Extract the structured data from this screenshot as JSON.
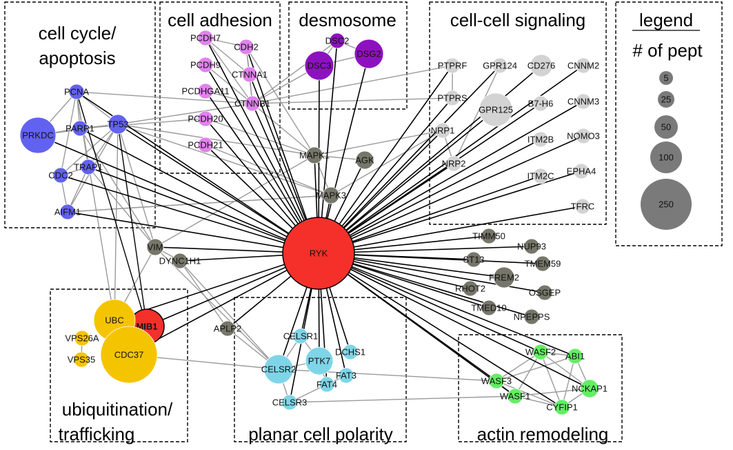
{
  "title": "",
  "colors": {
    "hub": "#f5302a",
    "cell_cycle": "#6262f0",
    "adhesion": "#e083ec",
    "desmosome": "#8d12bf",
    "signaling": "#d3d3d3",
    "other": "#76766a",
    "ubiquitination": "#f5c400",
    "planar": "#7fd5e8",
    "actin": "#63ee63",
    "legend": "#7a7a7a",
    "edge_hub": "#000000",
    "edge_other": "#9a9a9a"
  },
  "groups": [
    {
      "id": "cellcycle",
      "lines": [
        "cell cycle/",
        "apoptosis"
      ],
      "label_pos": "top"
    },
    {
      "id": "adhesion",
      "lines": [
        "cell adhesion"
      ],
      "label_pos": "top"
    },
    {
      "id": "desmosome",
      "lines": [
        "desmosome"
      ],
      "label_pos": "top"
    },
    {
      "id": "signaling",
      "lines": [
        "cell-cell signaling"
      ],
      "label_pos": "top"
    },
    {
      "id": "legend",
      "lines": [
        "legend",
        "# of pept"
      ],
      "label_pos": "top"
    },
    {
      "id": "ubiq",
      "lines": [
        "ubiquitination/",
        "trafficking"
      ],
      "label_pos": "bottom"
    },
    {
      "id": "planar",
      "lines": [
        "planar cell polarity"
      ],
      "label_pos": "bottom"
    },
    {
      "id": "actin",
      "lines": [
        "actin remodeling"
      ],
      "label_pos": "bottom"
    }
  ],
  "legend": {
    "title": "legend",
    "subtitle": "# of pept",
    "sizes": [
      "5",
      "25",
      "50",
      "100",
      "250"
    ]
  },
  "nodes": [
    {
      "id": "RYK",
      "label": "RYK",
      "group": "hub",
      "peptides": 250
    },
    {
      "id": "MIB1",
      "label": "MIB1",
      "group": "hub",
      "peptides": 45
    },
    {
      "id": "PCNA",
      "label": "PCNA",
      "group": "cell_cycle",
      "peptides": 5
    },
    {
      "id": "PRKDC",
      "label": "PRKDC",
      "group": "cell_cycle",
      "peptides": 50
    },
    {
      "id": "PARP1",
      "label": "PARP1",
      "group": "cell_cycle",
      "peptides": 5
    },
    {
      "id": "TP53",
      "label": "TP53",
      "group": "cell_cycle",
      "peptides": 5
    },
    {
      "id": "CDC2",
      "label": "CDC2",
      "group": "cell_cycle",
      "peptides": 5
    },
    {
      "id": "TRAP1",
      "label": "TRAP1",
      "group": "cell_cycle",
      "peptides": 5
    },
    {
      "id": "AIFM1",
      "label": "AIFM1",
      "group": "cell_cycle",
      "peptides": 5
    },
    {
      "id": "PCDH7",
      "label": "PCDH7",
      "group": "adhesion",
      "peptides": 5
    },
    {
      "id": "CDH2",
      "label": "CDH2",
      "group": "adhesion",
      "peptides": 5
    },
    {
      "id": "PCDH9",
      "label": "PCDH9",
      "group": "adhesion",
      "peptides": 5
    },
    {
      "id": "CTNNA1",
      "label": "CTNNA1",
      "group": "adhesion",
      "peptides": 5
    },
    {
      "id": "PCDHGA11",
      "label": "PCDHGA11",
      "group": "adhesion",
      "peptides": 5
    },
    {
      "id": "CTNNB1",
      "label": "CTNNB1",
      "group": "adhesion",
      "peptides": 5
    },
    {
      "id": "PCDH20",
      "label": "PCDH20",
      "group": "adhesion",
      "peptides": 5
    },
    {
      "id": "PCDH21",
      "label": "PCDH21",
      "group": "adhesion",
      "peptides": 5
    },
    {
      "id": "DSC2",
      "label": "DSC2",
      "group": "desmosome",
      "peptides": 5
    },
    {
      "id": "DSG2",
      "label": "DSG2",
      "group": "desmosome",
      "peptides": 25
    },
    {
      "id": "DSC3",
      "label": "DSC3",
      "group": "desmosome",
      "peptides": 25
    },
    {
      "id": "PTPRF",
      "label": "PTPRF",
      "group": "signaling",
      "peptides": 5
    },
    {
      "id": "GPR124",
      "label": "GPR124",
      "group": "signaling",
      "peptides": 5
    },
    {
      "id": "CD276",
      "label": "CD276",
      "group": "signaling",
      "peptides": 25
    },
    {
      "id": "CNNM2",
      "label": "CNNM2",
      "group": "signaling",
      "peptides": 5
    },
    {
      "id": "PTPRS",
      "label": "PTPRS",
      "group": "signaling",
      "peptides": 5
    },
    {
      "id": "GPR125",
      "label": "GPR125",
      "group": "signaling",
      "peptides": 50
    },
    {
      "id": "B7-H6",
      "label": "B7-H6",
      "group": "signaling",
      "peptides": 5
    },
    {
      "id": "CNNM3",
      "label": "CNNM3",
      "group": "signaling",
      "peptides": 5
    },
    {
      "id": "NRP1",
      "label": "NRP1",
      "group": "signaling",
      "peptides": 5
    },
    {
      "id": "ITM2B",
      "label": "ITM2B",
      "group": "signaling",
      "peptides": 5
    },
    {
      "id": "NOMO3",
      "label": "NOMO3",
      "group": "signaling",
      "peptides": 5
    },
    {
      "id": "NRP2",
      "label": "NRP2",
      "group": "signaling",
      "peptides": 5
    },
    {
      "id": "ITM2C",
      "label": "ITM2C",
      "group": "signaling",
      "peptides": 5
    },
    {
      "id": "EPHA4",
      "label": "EPHA4",
      "group": "signaling",
      "peptides": 5
    },
    {
      "id": "TFRC",
      "label": "TFRC",
      "group": "signaling",
      "peptides": 5
    },
    {
      "id": "MAPK1",
      "label": "MAPK1",
      "group": "other",
      "peptides": 5
    },
    {
      "id": "AGK",
      "label": "AGK",
      "group": "other",
      "peptides": 5
    },
    {
      "id": "MAPK3",
      "label": "MAPK3",
      "group": "other",
      "peptides": 5
    },
    {
      "id": "VIM",
      "label": "VIM",
      "group": "other",
      "peptides": 5
    },
    {
      "id": "DYNC1H1",
      "label": "DYNC1H1",
      "group": "other",
      "peptides": 5
    },
    {
      "id": "APLP2",
      "label": "APLP2",
      "group": "other",
      "peptides": 5
    },
    {
      "id": "TIMM50",
      "label": "TIMM50",
      "group": "other",
      "peptides": 5
    },
    {
      "id": "NUP93",
      "label": "NUP93",
      "group": "other",
      "peptides": 5
    },
    {
      "id": "ST13",
      "label": "ST13",
      "group": "other",
      "peptides": 5
    },
    {
      "id": "TMEM59",
      "label": "TMEM59",
      "group": "other",
      "peptides": 5
    },
    {
      "id": "FREM2",
      "label": "FREM2",
      "group": "other",
      "peptides": 25
    },
    {
      "id": "RHOT2",
      "label": "RHOT2",
      "group": "other",
      "peptides": 5
    },
    {
      "id": "OSGEP",
      "label": "OSGEP",
      "group": "other",
      "peptides": 5
    },
    {
      "id": "TMED10",
      "label": "TMED10",
      "group": "other",
      "peptides": 5
    },
    {
      "id": "NPEPPS",
      "label": "NPEPPS",
      "group": "other",
      "peptides": 5
    },
    {
      "id": "UBC",
      "label": "UBC",
      "group": "ubiquitination",
      "peptides": 50
    },
    {
      "id": "CDC37",
      "label": "CDC37",
      "group": "ubiquitination",
      "peptides": 100
    },
    {
      "id": "VPS26A",
      "label": "VPS26A",
      "group": "ubiquitination",
      "peptides": 5
    },
    {
      "id": "VPS35",
      "label": "VPS35",
      "group": "ubiquitination",
      "peptides": 5
    },
    {
      "id": "CELSR1",
      "label": "CELSR1",
      "group": "planar",
      "peptides": 5
    },
    {
      "id": "DCHS1",
      "label": "DCHS1",
      "group": "planar",
      "peptides": 5
    },
    {
      "id": "PTK7",
      "label": "PTK7",
      "group": "planar",
      "peptides": 25
    },
    {
      "id": "CELSR2",
      "label": "CELSR2",
      "group": "planar",
      "peptides": 25
    },
    {
      "id": "FAT4",
      "label": "FAT4",
      "group": "planar",
      "peptides": 5
    },
    {
      "id": "FAT3",
      "label": "FAT3",
      "group": "planar",
      "peptides": 5
    },
    {
      "id": "CELSR3",
      "label": "CELSR3",
      "group": "planar",
      "peptides": 5
    },
    {
      "id": "WASF2",
      "label": "WASF2",
      "group": "actin",
      "peptides": 5
    },
    {
      "id": "ABI1",
      "label": "ABI1",
      "group": "actin",
      "peptides": 5
    },
    {
      "id": "WASF3",
      "label": "WASF3",
      "group": "actin",
      "peptides": 5
    },
    {
      "id": "NCKAP1",
      "label": "NCKAP1",
      "group": "actin",
      "peptides": 5
    },
    {
      "id": "WASF1",
      "label": "WASF1",
      "group": "actin",
      "peptides": 5
    },
    {
      "id": "CYFIP1",
      "label": "CYFIP1",
      "group": "actin",
      "peptides": 5
    }
  ],
  "edges_hub": [
    "MIB1",
    "PCNA",
    "PRKDC",
    "PARP1",
    "TP53",
    "CDC2",
    "TRAP1",
    "AIFM1",
    "PCDH7",
    "CDH2",
    "PCDH9",
    "CTNNA1",
    "PCDHGA11",
    "CTNNB1",
    "PCDH20",
    "PCDH21",
    "DSC2",
    "DSG2",
    "DSC3",
    "PTPRF",
    "GPR124",
    "CD276",
    "CNNM2",
    "PTPRS",
    "GPR125",
    "B7-H6",
    "CNNM3",
    "NRP1",
    "ITM2B",
    "NOMO3",
    "NRP2",
    "ITM2C",
    "EPHA4",
    "TFRC",
    "MAPK1",
    "AGK",
    "MAPK3",
    "VIM",
    "DYNC1H1",
    "APLP2",
    "TIMM50",
    "NUP93",
    "ST13",
    "TMEM59",
    "FREM2",
    "RHOT2",
    "OSGEP",
    "TMED10",
    "NPEPPS",
    "UBC",
    "CDC37",
    "CELSR1",
    "DCHS1",
    "PTK7",
    "CELSR2",
    "FAT4",
    "FAT3",
    "CELSR3",
    "WASF2",
    "ABI1",
    "WASF3",
    "NCKAP1",
    "WASF1",
    "CYFIP1"
  ],
  "edges_mib1": [
    "UBC",
    "CDC37",
    "PCNA",
    "TP53"
  ],
  "edges_other": [
    [
      "PCNA",
      "PRKDC"
    ],
    [
      "PCNA",
      "PARP1"
    ],
    [
      "PCNA",
      "TP53"
    ],
    [
      "PCNA",
      "CDC2"
    ],
    [
      "PCNA",
      "TRAP1"
    ],
    [
      "PRKDC",
      "TP53"
    ],
    [
      "PRKDC",
      "PARP1"
    ],
    [
      "PARP1",
      "TP53"
    ],
    [
      "TP53",
      "CDC2"
    ],
    [
      "TP53",
      "TRAP1"
    ],
    [
      "TP53",
      "AIFM1"
    ],
    [
      "TP53",
      "VIM"
    ],
    [
      "TP53",
      "UBC"
    ],
    [
      "TP53",
      "MAPK1"
    ],
    [
      "TP53",
      "CTNNB1"
    ],
    [
      "TP53",
      "MAPK3"
    ],
    [
      "PCNA",
      "CTNNB1"
    ],
    [
      "PARP1",
      "PCDH20"
    ],
    [
      "CDC2",
      "TRAP1"
    ],
    [
      "TRAP1",
      "AIFM1"
    ],
    [
      "TRAP1",
      "VIM"
    ],
    [
      "CDC2",
      "AIFM1"
    ],
    [
      "AIFM1",
      "MAPK3"
    ],
    [
      "PCNA",
      "UBC"
    ],
    [
      "PARP1",
      "VIM"
    ],
    [
      "CTNNB1",
      "CTNNA1"
    ],
    [
      "CTNNB1",
      "CDH2"
    ],
    [
      "CTNNB1",
      "PCDHGA11"
    ],
    [
      "CTNNB1",
      "DSC3"
    ],
    [
      "CTNNB1",
      "DSC2"
    ],
    [
      "CTNNB1",
      "PTPRF"
    ],
    [
      "CTNNB1",
      "PTPRS"
    ],
    [
      "CTNNB1",
      "MAPK1"
    ],
    [
      "CTNNB1",
      "PCDH7"
    ],
    [
      "CTNNB1",
      "PCDH9"
    ],
    [
      "CDH2",
      "CTNNA1"
    ],
    [
      "CTNNA1",
      "PCDH7"
    ],
    [
      "CDH2",
      "MAPK1"
    ],
    [
      "PCDH20",
      "MAPK1"
    ],
    [
      "PCDH21",
      "MAPK3"
    ],
    [
      "PCDH7",
      "CDH2"
    ],
    [
      "DSC3",
      "DSG2"
    ],
    [
      "DSC3",
      "DSC2"
    ],
    [
      "DSC2",
      "DSG2"
    ],
    [
      "MAPK1",
      "MAPK3"
    ],
    [
      "MAPK1",
      "NRP1"
    ],
    [
      "MAPK1",
      "AGK"
    ],
    [
      "MAPK3",
      "NRP1"
    ],
    [
      "MAPK3",
      "AIFM1"
    ],
    [
      "NRP1",
      "NRP2"
    ],
    [
      "PTPRF",
      "PTPRS"
    ],
    [
      "GPR124",
      "NRP2"
    ],
    [
      "VIM",
      "DYNC1H1"
    ],
    [
      "VIM",
      "MAPK1"
    ],
    [
      "UBC",
      "CDC37"
    ],
    [
      "VPS26A",
      "VPS35"
    ],
    [
      "UBC",
      "VIM"
    ],
    [
      "CDC37",
      "CELSR2"
    ],
    [
      "APLP2",
      "CELSR2"
    ],
    [
      "APLP2",
      "DYNC1H1"
    ],
    [
      "CELSR1",
      "CELSR2"
    ],
    [
      "CELSR1",
      "PTK7"
    ],
    [
      "PTK7",
      "CELSR2"
    ],
    [
      "PTK7",
      "FAT4"
    ],
    [
      "FAT4",
      "FAT3"
    ],
    [
      "CELSR2",
      "CELSR3"
    ],
    [
      "CELSR3",
      "WASF1"
    ],
    [
      "CELSR2",
      "WASF3"
    ],
    [
      "CELSR3",
      "FAT4"
    ],
    [
      "WASF2",
      "ABI1"
    ],
    [
      "WASF2",
      "NCKAP1"
    ],
    [
      "WASF2",
      "CYFIP1"
    ],
    [
      "WASF2",
      "WASF3"
    ],
    [
      "WASF2",
      "WASF1"
    ],
    [
      "ABI1",
      "NCKAP1"
    ],
    [
      "ABI1",
      "CYFIP1"
    ],
    [
      "ABI1",
      "WASF3"
    ],
    [
      "WASF3",
      "WASF1"
    ],
    [
      "WASF3",
      "CYFIP1"
    ],
    [
      "WASF1",
      "CYFIP1"
    ],
    [
      "WASF1",
      "NCKAP1"
    ],
    [
      "NCKAP1",
      "CYFIP1"
    ],
    [
      "CELSR2",
      "VIM"
    ],
    [
      "DYNC1H1",
      "CELSR2"
    ]
  ]
}
